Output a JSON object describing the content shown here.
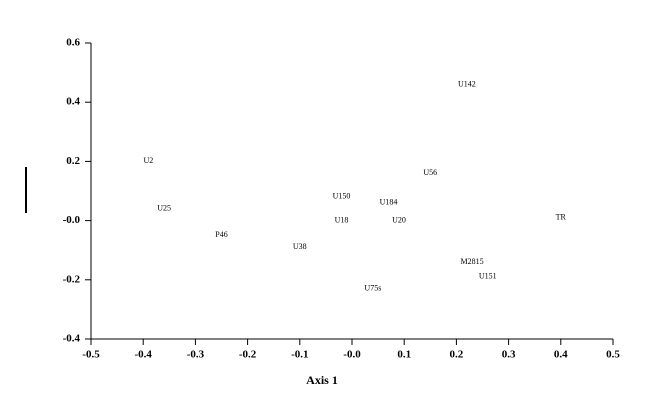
{
  "chart_data": {
    "type": "scatter",
    "x_label": "Axis 1",
    "xlim": [
      -0.5,
      0.5
    ],
    "xticks": [
      -0.5,
      -0.4,
      -0.3,
      -0.2,
      -0.1,
      {
        "value": 0,
        "label": "-0.0"
      },
      0.1,
      0.2,
      0.3,
      0.4,
      0.5
    ],
    "ylim": [
      -0.4,
      0.6
    ],
    "yticks": [
      -0.4,
      -0.2,
      {
        "value": 0,
        "label": "-0.0"
      },
      0.2,
      0.4,
      0.6
    ],
    "point_labels": [
      "U2",
      "U25",
      "P46",
      "U38",
      "U150",
      "U18",
      "U184",
      "U20",
      "U56",
      "U142",
      "TR",
      "M2815",
      "U151",
      "U75s"
    ],
    "x": [
      -0.39,
      -0.36,
      -0.25,
      -0.1,
      -0.02,
      -0.02,
      0.07,
      0.09,
      0.15,
      0.22,
      0.4,
      0.23,
      0.26,
      0.04
    ],
    "values": [
      0.2,
      0.04,
      -0.05,
      -0.09,
      0.08,
      0.0,
      0.06,
      0.0,
      0.16,
      0.46,
      0.01,
      -0.14,
      -0.19,
      -0.23
    ]
  }
}
